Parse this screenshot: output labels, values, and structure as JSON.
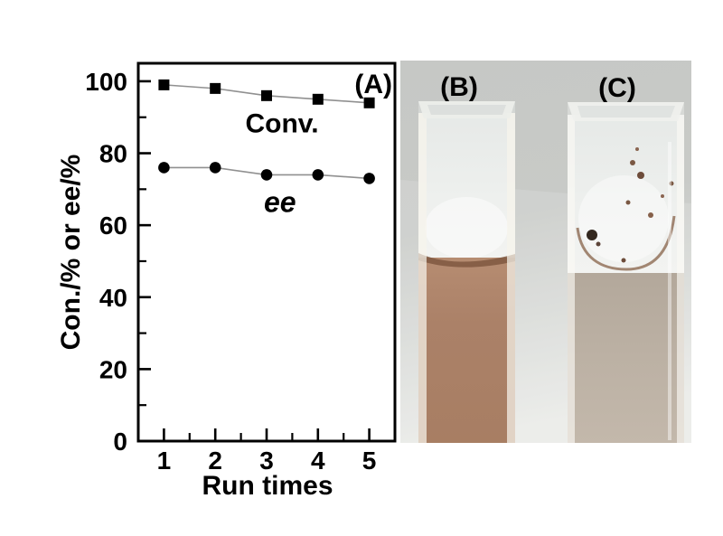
{
  "figure": {
    "panel_a_label": "(A)",
    "panel_b_label": "(B)",
    "panel_c_label": "(C)"
  },
  "chart_data": {
    "type": "line",
    "title": "",
    "xlabel": "Run times",
    "ylabel": "Con./% or ee/%",
    "x": [
      1,
      2,
      3,
      4,
      5
    ],
    "series": [
      {
        "name": "Conv.",
        "marker": "square",
        "values": [
          99,
          98,
          96,
          95,
          94
        ],
        "label_pos": {
          "x": 3.3,
          "y": 88.5
        },
        "italic": false
      },
      {
        "name": "ee",
        "marker": "circle",
        "values": [
          76,
          76,
          74,
          74,
          73
        ],
        "label_pos": {
          "x": 3.26,
          "y": 66.5
        },
        "italic": true
      }
    ],
    "xlim": [
      0.5,
      5.5
    ],
    "ylim": [
      0,
      105
    ],
    "x_major_ticks": [
      1,
      2,
      3,
      4,
      5
    ],
    "x_minor_ticks": [
      1.5,
      2.5,
      3.5,
      4.5
    ],
    "y_major_ticks": [
      0,
      20,
      40,
      60,
      80,
      100
    ],
    "y_minor_ticks": [
      10,
      30,
      50,
      70,
      90
    ],
    "grid": false,
    "legend_position": "inline-annotations",
    "line_color": "#909090",
    "marker_color": "#000000",
    "axis_color": "#000000"
  },
  "photo": {
    "background_color": "#c8cac7",
    "cuvettes": [
      {
        "label": "(B)",
        "liquid_color": "#ab8168",
        "description": "pink-brown solution below white frosted solid"
      },
      {
        "label": "(C)",
        "liquid_color": "#bcb1a4",
        "description": "pale solution, frosted glass with brown specks"
      }
    ]
  }
}
